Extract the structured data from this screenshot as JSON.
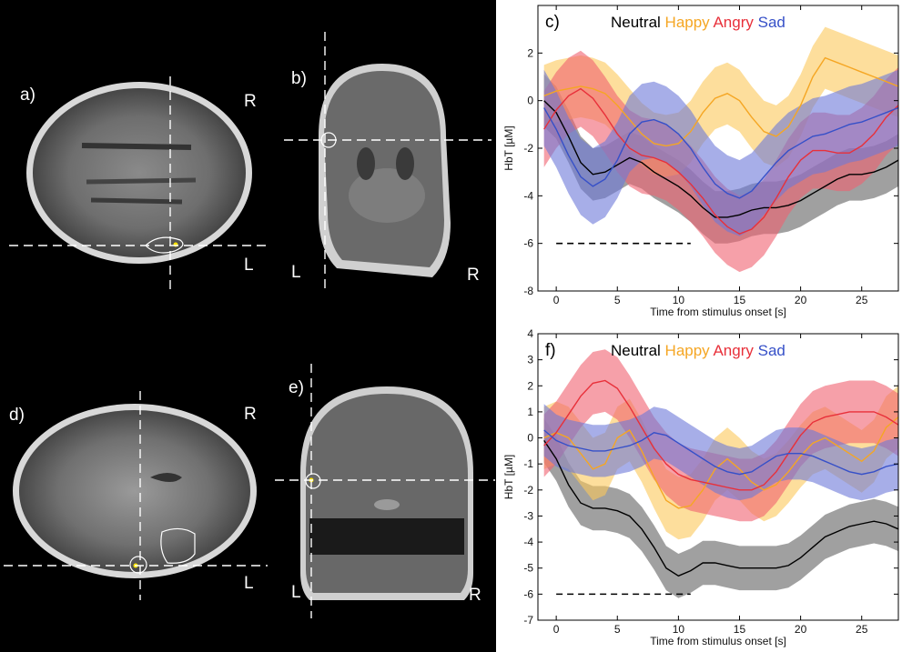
{
  "panels": {
    "a": {
      "label": "a)",
      "side_top": "R",
      "side_bottom": "L"
    },
    "b": {
      "label": "b)",
      "side_left": "L",
      "side_right": "R"
    },
    "d": {
      "label": "d)",
      "side_top": "R",
      "side_bottom": "L"
    },
    "e": {
      "label": "e)",
      "side_left": "L",
      "side_right": "R"
    }
  },
  "colors": {
    "Neutral": "#000000",
    "Happy": "#f5a623",
    "Angry": "#e8303a",
    "Sad": "#3650c8",
    "Neutral_band": "#808080",
    "Happy_band": "#fbc85a",
    "Angry_band": "#f06070",
    "Sad_band": "#6d78d8"
  },
  "chart_data": [
    {
      "type": "line",
      "panel_label": "c)",
      "xlabel": "Time from stimulus onset [s]",
      "ylabel": "HbT [µM]",
      "xlim": [
        -1.5,
        28
      ],
      "ylim": [
        -8,
        4
      ],
      "xticks": [
        0,
        5,
        10,
        15,
        20,
        25
      ],
      "yticks": [
        -8,
        -6,
        -4,
        -2,
        0,
        2
      ],
      "legend": "top",
      "baseline_bar": {
        "y": -6,
        "x": [
          0,
          11
        ]
      },
      "x": [
        -1,
        0,
        1,
        2,
        3,
        4,
        5,
        6,
        7,
        8,
        9,
        10,
        11,
        12,
        13,
        14,
        15,
        16,
        17,
        18,
        19,
        20,
        21,
        22,
        23,
        24,
        25,
        26,
        27,
        28
      ],
      "series": [
        {
          "name": "Neutral",
          "values": [
            0.0,
            -0.5,
            -1.5,
            -2.6,
            -3.1,
            -3.0,
            -2.7,
            -2.4,
            -2.6,
            -3.0,
            -3.3,
            -3.6,
            -4.0,
            -4.5,
            -4.9,
            -4.9,
            -4.8,
            -4.6,
            -4.5,
            -4.5,
            -4.4,
            -4.2,
            -3.9,
            -3.6,
            -3.3,
            -3.1,
            -3.1,
            -3.0,
            -2.8,
            -2.5
          ],
          "band": 1.1
        },
        {
          "name": "Happy",
          "values": [
            0.2,
            0.4,
            0.5,
            0.6,
            0.5,
            0.3,
            -0.2,
            -0.8,
            -1.4,
            -1.8,
            -1.9,
            -1.8,
            -1.3,
            -0.5,
            0.1,
            0.3,
            0.0,
            -0.7,
            -1.3,
            -1.5,
            -1.1,
            -0.2,
            1.0,
            1.8,
            1.6,
            1.4,
            1.2,
            1.0,
            0.8,
            0.6
          ],
          "band": 1.3
        },
        {
          "name": "Angry",
          "values": [
            -1.2,
            -0.4,
            0.2,
            0.5,
            0.1,
            -0.6,
            -1.4,
            -2.0,
            -2.3,
            -2.4,
            -2.6,
            -3.0,
            -3.5,
            -4.1,
            -4.8,
            -5.3,
            -5.6,
            -5.4,
            -4.9,
            -4.1,
            -3.2,
            -2.5,
            -2.1,
            -2.1,
            -2.2,
            -2.2,
            -1.9,
            -1.4,
            -0.7,
            -0.2
          ],
          "band": 1.6
        },
        {
          "name": "Sad",
          "values": [
            -0.3,
            -1.2,
            -2.3,
            -3.2,
            -3.6,
            -3.3,
            -2.5,
            -1.4,
            -0.9,
            -0.8,
            -1.0,
            -1.4,
            -2.0,
            -2.8,
            -3.5,
            -3.9,
            -4.1,
            -3.8,
            -3.2,
            -2.6,
            -2.1,
            -1.8,
            -1.5,
            -1.4,
            -1.2,
            -1.0,
            -0.9,
            -0.7,
            -0.5,
            -0.3
          ],
          "band": 1.6
        }
      ]
    },
    {
      "type": "line",
      "panel_label": "f)",
      "xlabel": "Time from stimulus onset [s]",
      "ylabel": "HbT [µM]",
      "xlim": [
        -1.5,
        28
      ],
      "ylim": [
        -7,
        4
      ],
      "xticks": [
        0,
        5,
        10,
        15,
        20,
        25
      ],
      "yticks": [
        -7,
        -6,
        -5,
        -4,
        -3,
        -2,
        -1,
        0,
        1,
        2,
        3,
        4
      ],
      "legend": "top",
      "baseline_bar": {
        "y": -6,
        "x": [
          0,
          11
        ]
      },
      "x": [
        -1,
        0,
        1,
        2,
        3,
        4,
        5,
        6,
        7,
        8,
        9,
        10,
        11,
        12,
        13,
        14,
        15,
        16,
        17,
        18,
        19,
        20,
        21,
        22,
        23,
        24,
        25,
        26,
        27,
        28
      ],
      "series": [
        {
          "name": "Neutral",
          "values": [
            -0.1,
            -0.8,
            -1.8,
            -2.5,
            -2.7,
            -2.7,
            -2.8,
            -3.0,
            -3.5,
            -4.2,
            -5.0,
            -5.3,
            -5.1,
            -4.8,
            -4.8,
            -4.9,
            -5.0,
            -5.0,
            -5.0,
            -5.0,
            -4.9,
            -4.6,
            -4.2,
            -3.8,
            -3.6,
            -3.4,
            -3.3,
            -3.2,
            -3.3,
            -3.5
          ],
          "band": 0.85
        },
        {
          "name": "Happy",
          "values": [
            0.0,
            0.2,
            0.0,
            -0.6,
            -1.2,
            -1.0,
            0.0,
            0.3,
            -0.5,
            -1.5,
            -2.4,
            -2.7,
            -2.6,
            -2.0,
            -1.2,
            -0.8,
            -1.2,
            -1.7,
            -2.0,
            -1.8,
            -1.3,
            -0.7,
            -0.2,
            0.0,
            -0.3,
            -0.6,
            -0.9,
            -0.5,
            0.4,
            0.8
          ],
          "band": 1.2
        },
        {
          "name": "Angry",
          "values": [
            -0.3,
            0.2,
            0.9,
            1.6,
            2.1,
            2.2,
            1.9,
            1.2,
            0.4,
            -0.4,
            -1.0,
            -1.4,
            -1.6,
            -1.7,
            -1.8,
            -1.9,
            -2.0,
            -2.0,
            -1.8,
            -1.3,
            -0.6,
            0.1,
            0.6,
            0.8,
            0.9,
            1.0,
            1.0,
            1.0,
            0.8,
            0.5
          ],
          "band": 1.2
        },
        {
          "name": "Sad",
          "values": [
            0.3,
            -0.1,
            -0.3,
            -0.4,
            -0.5,
            -0.5,
            -0.4,
            -0.3,
            -0.1,
            0.2,
            0.1,
            -0.2,
            -0.5,
            -0.8,
            -1.1,
            -1.3,
            -1.4,
            -1.3,
            -1.0,
            -0.7,
            -0.6,
            -0.6,
            -0.7,
            -0.9,
            -1.1,
            -1.3,
            -1.4,
            -1.3,
            -1.1,
            -1.0
          ],
          "band": 1.0
        }
      ]
    }
  ]
}
